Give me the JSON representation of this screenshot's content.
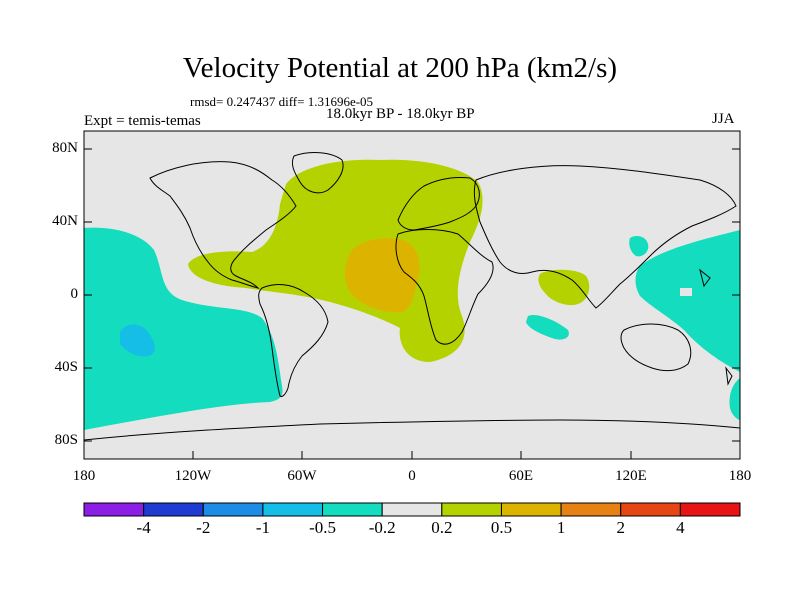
{
  "title": "Velocity Potential at 200 hPa (km2/s)",
  "rmsd_text": "rmsd= 0.247437 diff= 1.31696e-05",
  "period_text": "18.0kyr BP - 18.0kyr BP",
  "expt_text": "Expt = temis-temas",
  "season": "JJA",
  "y_axis": {
    "labels": [
      "80N",
      "40N",
      "0",
      "40S",
      "80S"
    ],
    "latitudes": [
      80,
      40,
      0,
      -40,
      -80
    ]
  },
  "x_axis": {
    "labels": [
      "180",
      "120W",
      "60W",
      "0",
      "60E",
      "120E",
      "180"
    ],
    "longitudes": [
      -180,
      -120,
      -60,
      0,
      60,
      120,
      180
    ]
  },
  "colorbar": {
    "labels": [
      "-4",
      "-2",
      "-1",
      "-0.5",
      "-0.2",
      "0.2",
      "0.5",
      "1",
      "2",
      "4"
    ],
    "colors": [
      "#8c1ee6",
      "#1e3cd2",
      "#1e8ce6",
      "#14bee6",
      "#14dcbe",
      "#e6e6e6",
      "#b4d200",
      "#dcb400",
      "#e68214",
      "#e64614",
      "#e61414"
    ]
  },
  "colors": {
    "ocean_land_bg": "#e6e6e6",
    "positive_weak": "#b4d200",
    "positive_mid": "#dcb400",
    "negative_weak": "#14dcbe",
    "negative_mid": "#14bee6"
  }
}
